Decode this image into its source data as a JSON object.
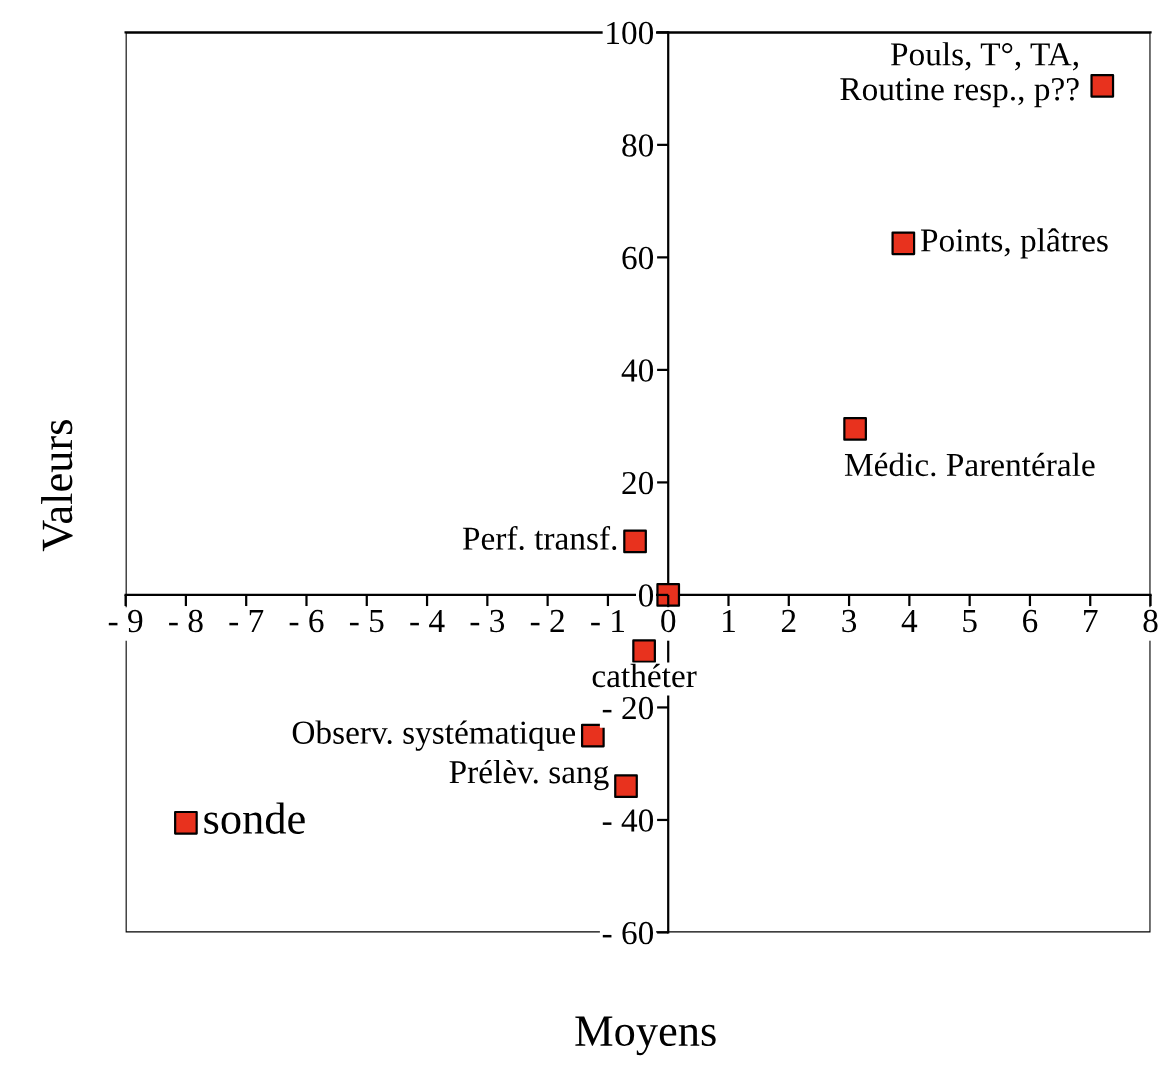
{
  "chart_data": {
    "type": "scatter",
    "xlabel": "Moyens",
    "ylabel": "Valeurs",
    "series": [
      {
        "color": "#e8321e",
        "x": [
          7.2,
          3.9,
          3.1,
          -0.55,
          0,
          -0.4,
          -1.25,
          -0.7,
          -8.0
        ],
        "values": [
          90.5,
          62.5,
          29.5,
          9.5,
          0,
          -10,
          -25,
          -34,
          -40.5
        ]
      }
    ],
    "annotations": [
      {
        "text": "Pouls, T°, TA,\nRoutine resp., p??",
        "x": 7.2,
        "y": 90.5
      },
      {
        "text": "Points, plâtres",
        "x": 3.9,
        "y": 62.5
      },
      {
        "text": "Médic. Parentérale",
        "x": 3.1,
        "y": 29.5
      },
      {
        "text": "Perf. transf.",
        "x": -0.55,
        "y": 9.5
      },
      {
        "text": "cathéter",
        "x": -0.4,
        "y": -10
      },
      {
        "text": "Observ. systématique",
        "x": -1.25,
        "y": -25
      },
      {
        "text": "Prélèv. sang",
        "x": -0.7,
        "y": -34
      },
      {
        "text": "sonde",
        "x": -8.0,
        "y": -40.5
      }
    ],
    "xlim": [
      -9,
      8
    ],
    "ylim": [
      -60,
      100
    ],
    "xticks": [
      {
        "value": -9,
        "label": "- 9"
      },
      {
        "value": -8,
        "label": "- 8"
      },
      {
        "value": -7,
        "label": "- 7"
      },
      {
        "value": -6,
        "label": "- 6"
      },
      {
        "value": -5,
        "label": "- 5"
      },
      {
        "value": -4,
        "label": "- 4"
      },
      {
        "value": -3,
        "label": "- 3"
      },
      {
        "value": -2,
        "label": "- 2"
      },
      {
        "value": -1,
        "label": "- 1"
      },
      0,
      1,
      2,
      3,
      4,
      5,
      6,
      7,
      8
    ],
    "yticks": [
      {
        "value": -60,
        "label": "- 60"
      },
      {
        "value": -40,
        "label": "- 40"
      },
      {
        "value": -20,
        "label": "- 20"
      },
      0,
      20,
      40,
      60,
      80,
      100
    ],
    "marker": "square",
    "grid": false,
    "legend": false
  }
}
